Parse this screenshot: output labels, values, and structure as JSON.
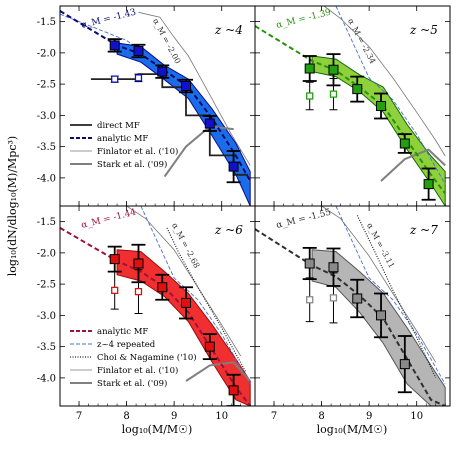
{
  "chart_data": [
    {
      "type": "scatter",
      "panel_label": "z ~4",
      "slope_label": "α_M = -1.43",
      "xlim": [
        6.6,
        10.7
      ],
      "ylim": [
        -4.45,
        -1.25
      ],
      "color": "#1111cc",
      "band": {
        "x": [
          7.8,
          8.3,
          8.8,
          9.3,
          9.8,
          10.3,
          10.6
        ],
        "lo": [
          -2.02,
          -2.15,
          -2.43,
          -2.73,
          -3.33,
          -3.95,
          -4.45
        ],
        "hi": [
          -1.84,
          -1.9,
          -2.2,
          -2.42,
          -2.9,
          -3.45,
          -3.9
        ]
      },
      "analytic_line": {
        "x": [
          6.6,
          7.8,
          8.3,
          8.8,
          9.3,
          9.8,
          10.3,
          10.6
        ],
        "y": [
          -1.33,
          -1.88,
          -2.02,
          -2.28,
          -2.55,
          -3.05,
          -3.65,
          -4.05
        ]
      },
      "direct_mf": {
        "x": [
          7.25,
          7.75,
          7.75,
          8.25,
          8.25,
          8.75,
          8.75,
          9.25,
          9.25,
          9.75,
          9.75,
          10.25,
          10.25,
          10.55
        ],
        "y": [
          -2.42,
          -2.42,
          -2.42,
          -2.42,
          -2.34,
          -2.34,
          -2.55,
          -2.55,
          -3.0,
          -3.0,
          -3.64,
          -3.64,
          -3.95,
          -3.95
        ]
      },
      "filled_points": {
        "x": [
          7.75,
          8.25,
          8.75,
          9.25,
          9.75,
          10.25
        ],
        "y": [
          -1.88,
          -1.97,
          -2.3,
          -2.53,
          -3.13,
          -3.82
        ],
        "err": [
          0.1,
          0.1,
          0.1,
          0.1,
          0.12,
          0.25
        ]
      },
      "open_points": {
        "x": [
          7.75,
          8.25
        ],
        "y": [
          -2.42,
          -2.4
        ],
        "err": [
          0.05,
          0.06
        ]
      },
      "blue_dashed": {
        "x": [
          6.6,
          8.0,
          9.0,
          9.5,
          10.0,
          10.6
        ],
        "y": [
          -1.38,
          -1.8,
          -2.4,
          -2.75,
          -3.3,
          -4.1
        ]
      },
      "finlator": {
        "x": [
          8.25,
          8.7,
          9.0,
          9.3,
          9.7,
          10.2,
          10.6
        ],
        "y": [
          -1.35,
          -1.43,
          -1.75,
          -2.05,
          -2.6,
          -3.3,
          -3.8
        ]
      },
      "finlator_label": "α_M = -2.00",
      "stark": {
        "x": [
          8.8,
          9.25,
          9.75,
          10.25
        ],
        "y": [
          -3.98,
          -3.5,
          -3.18,
          -3.22
        ]
      },
      "legend": [
        {
          "label": "direct MF",
          "style": "direct"
        },
        {
          "label": "analytic MF",
          "style": "analytic"
        },
        {
          "label": "Finlator et al. ('10)",
          "style": "finlator"
        },
        {
          "label": "Stark et al. ('09)",
          "style": "stark"
        }
      ]
    },
    {
      "type": "scatter",
      "panel_label": "z ~5",
      "slope_label": "α_M = -1.39",
      "xlim": [
        6.6,
        10.7
      ],
      "ylim": [
        -4.45,
        -1.25
      ],
      "color": "#22a010",
      "band": {
        "x": [
          7.8,
          8.3,
          8.8,
          9.3,
          9.8,
          10.3,
          10.6
        ],
        "lo": [
          -2.3,
          -2.38,
          -2.62,
          -2.95,
          -3.55,
          -4.1,
          -4.45
        ],
        "hi": [
          -2.05,
          -2.1,
          -2.35,
          -2.55,
          -3.15,
          -3.65,
          -3.9
        ]
      },
      "analytic_line": {
        "x": [
          6.6,
          7.8,
          8.3,
          8.8,
          9.3,
          9.8,
          10.3,
          10.6
        ],
        "y": [
          -1.57,
          -2.13,
          -2.28,
          -2.55,
          -2.85,
          -3.4,
          -3.95,
          -4.25
        ]
      },
      "filled_points": {
        "x": [
          7.75,
          8.25,
          8.75,
          9.25,
          9.75,
          10.25
        ],
        "y": [
          -2.25,
          -2.27,
          -2.58,
          -2.85,
          -3.45,
          -4.1
        ],
        "err": [
          0.2,
          0.25,
          0.2,
          0.2,
          0.15,
          0.25
        ]
      },
      "open_points": {
        "x": [
          7.75,
          8.25
        ],
        "y": [
          -2.69,
          -2.66
        ],
        "err": [
          0.22,
          0.25
        ]
      },
      "blue_dashed": {
        "x": [
          8.3,
          9.0,
          9.5,
          10.0,
          10.6
        ],
        "y": [
          -1.25,
          -2.4,
          -2.75,
          -3.3,
          -4.1
        ]
      },
      "finlator": {
        "x": [
          8.05,
          8.4,
          9.0,
          9.5,
          10.0,
          10.4,
          10.6
        ],
        "y": [
          -1.25,
          -1.45,
          -1.9,
          -2.4,
          -2.95,
          -3.4,
          -3.65
        ]
      },
      "finlator_label": "α_M = -2.34",
      "stark": {
        "x": [
          9.25,
          9.75,
          10.25,
          10.6
        ],
        "y": [
          -4.05,
          -3.7,
          -3.55,
          -3.8
        ]
      }
    },
    {
      "type": "scatter",
      "panel_label": "z ~6",
      "slope_label": "α_M = -1.44",
      "xlim": [
        6.6,
        10.7
      ],
      "ylim": [
        -4.45,
        -1.25
      ],
      "color": "#e01010",
      "band": {
        "x": [
          7.8,
          8.3,
          8.8,
          9.3,
          9.8,
          10.3,
          10.6
        ],
        "lo": [
          -2.35,
          -2.45,
          -2.7,
          -3.1,
          -3.75,
          -4.35,
          -4.45
        ],
        "hi": [
          -1.95,
          -1.98,
          -2.3,
          -2.65,
          -3.15,
          -3.7,
          -4.05
        ]
      },
      "analytic_line": {
        "x": [
          6.6,
          7.8,
          8.3,
          8.8,
          9.3,
          9.8,
          10.3,
          10.6
        ],
        "y": [
          -1.6,
          -2.13,
          -2.3,
          -2.55,
          -2.95,
          -3.55,
          -4.15,
          -4.45
        ]
      },
      "filled_points": {
        "x": [
          7.75,
          8.25,
          8.75,
          9.25,
          9.75,
          10.25
        ],
        "y": [
          -2.1,
          -2.17,
          -2.55,
          -2.8,
          -3.5,
          -4.2
        ],
        "err": [
          0.2,
          0.3,
          0.2,
          0.25,
          0.2,
          0.25
        ]
      },
      "open_points": {
        "x": [
          7.75,
          8.25
        ],
        "y": [
          -2.6,
          -2.62
        ],
        "err": [
          0.3,
          0.35
        ]
      },
      "blue_dashed": {
        "x": [
          8.3,
          9.0,
          9.5,
          10.0,
          10.6
        ],
        "y": [
          -1.25,
          -2.4,
          -2.75,
          -3.3,
          -4.1
        ]
      },
      "finlator": {
        "x": [
          8.0,
          8.4,
          9.0,
          9.5,
          10.0,
          10.4
        ],
        "y": [
          -1.25,
          -1.45,
          -1.95,
          -2.55,
          -3.15,
          -3.65
        ]
      },
      "choi": {
        "x": [
          8.85,
          9.1,
          9.5,
          10.0,
          10.5
        ],
        "y": [
          -1.6,
          -2.0,
          -2.55,
          -3.2,
          -3.9
        ]
      },
      "choi_label": "α_M = -2.68",
      "stark": {
        "x": [
          9.25,
          9.75,
          10.25,
          10.6
        ],
        "y": [
          -4.05,
          -3.8,
          -3.75,
          -4.05
        ]
      },
      "legend": [
        {
          "label": "analytic MF",
          "style": "analytic"
        },
        {
          "label": "z~4 repeated",
          "style": "blue_dashed"
        },
        {
          "label": "Choi & Nagamine ('10)",
          "style": "choi"
        },
        {
          "label": "Finlator et al. ('10)",
          "style": "finlator"
        },
        {
          "label": "Stark et al. ('09)",
          "style": "stark"
        }
      ]
    },
    {
      "type": "scatter",
      "panel_label": "z ~7",
      "slope_label": "α_M = -1.55",
      "xlim": [
        6.6,
        10.7
      ],
      "ylim": [
        -4.45,
        -1.25
      ],
      "color": "#8a8a8a",
      "band": {
        "x": [
          7.8,
          8.3,
          8.8,
          9.3,
          9.8,
          10.3,
          10.6
        ],
        "lo": [
          -2.45,
          -2.55,
          -2.95,
          -3.45,
          -4.1,
          -4.45,
          -4.45
        ],
        "hi": [
          -1.95,
          -1.98,
          -2.3,
          -2.65,
          -3.2,
          -3.8,
          -4.15
        ]
      },
      "analytic_line": {
        "x": [
          6.6,
          7.8,
          8.3,
          8.8,
          9.3,
          9.8,
          10.3,
          10.6
        ],
        "y": [
          -1.62,
          -2.2,
          -2.38,
          -2.68,
          -3.05,
          -3.7,
          -4.35,
          -4.45
        ]
      },
      "filled_points": {
        "x": [
          7.75,
          8.25,
          8.75,
          9.25,
          9.75
        ],
        "y": [
          -2.17,
          -2.23,
          -2.73,
          -3.0,
          -3.78
        ],
        "err": [
          0.25,
          0.3,
          0.3,
          0.35,
          0.45
        ]
      },
      "open_points": {
        "x": [
          7.75,
          8.25
        ],
        "y": [
          -2.75,
          -2.72
        ],
        "err": [
          0.35,
          0.4
        ]
      },
      "blue_dashed": {
        "x": [
          8.3,
          9.0,
          9.5,
          10.0,
          10.6
        ],
        "y": [
          -1.25,
          -2.4,
          -2.75,
          -3.3,
          -4.1
        ]
      },
      "finlator": {
        "x": [
          8.0,
          8.4,
          9.0,
          9.5,
          10.0,
          10.4
        ],
        "y": [
          -1.25,
          -1.45,
          -2.05,
          -2.65,
          -3.25,
          -3.75
        ]
      },
      "choi": {
        "x": [
          8.75,
          9.1,
          9.5,
          10.0,
          10.4
        ],
        "y": [
          -1.4,
          -1.95,
          -2.6,
          -3.35,
          -4.0
        ]
      },
      "choi_label": "α_M = -3.11"
    }
  ],
  "axes": {
    "ylabel": "log₁₀(dN/dlog₁₀(M)/Mpc³)",
    "xlabel": "log₁₀(M/M☉)",
    "yticks": [
      "-1.5",
      "-2.0",
      "-2.5",
      "-3.0",
      "-3.5",
      "-4.0"
    ],
    "xticks": [
      "7",
      "8",
      "9",
      "10"
    ]
  }
}
